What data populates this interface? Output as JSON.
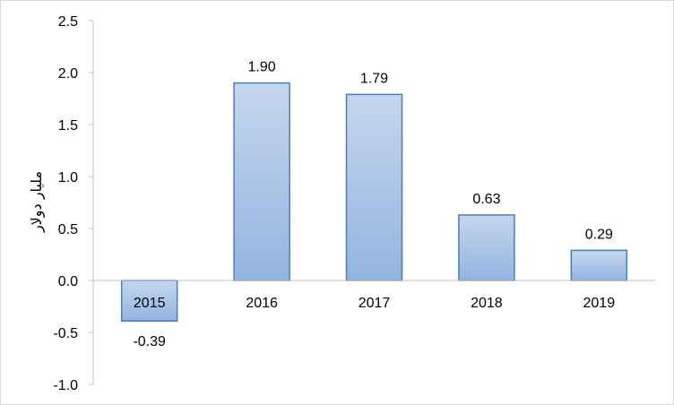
{
  "chart_data": {
    "type": "bar",
    "categories": [
      "2015",
      "2016",
      "2017",
      "2018",
      "2019"
    ],
    "values": [
      -0.39,
      1.9,
      1.79,
      0.63,
      0.29
    ],
    "data_labels": [
      "-0.39",
      "1.90",
      "1.79",
      "0.63",
      "0.29"
    ],
    "ylabel": "مليار دولار",
    "xlabel": "",
    "ylim": [
      -1.0,
      2.5
    ],
    "yticks": [
      "2.5",
      "2.0",
      "1.5",
      "1.0",
      "0.5",
      "0.0",
      "-0.5",
      "-1.0"
    ],
    "grid": false,
    "legend": "none",
    "colors": {
      "bar_fill_top": "#c5d6ee",
      "bar_fill_bottom": "#93b4e0",
      "bar_stroke": "#4a7ebb",
      "axis": "#bfbfbf"
    }
  }
}
